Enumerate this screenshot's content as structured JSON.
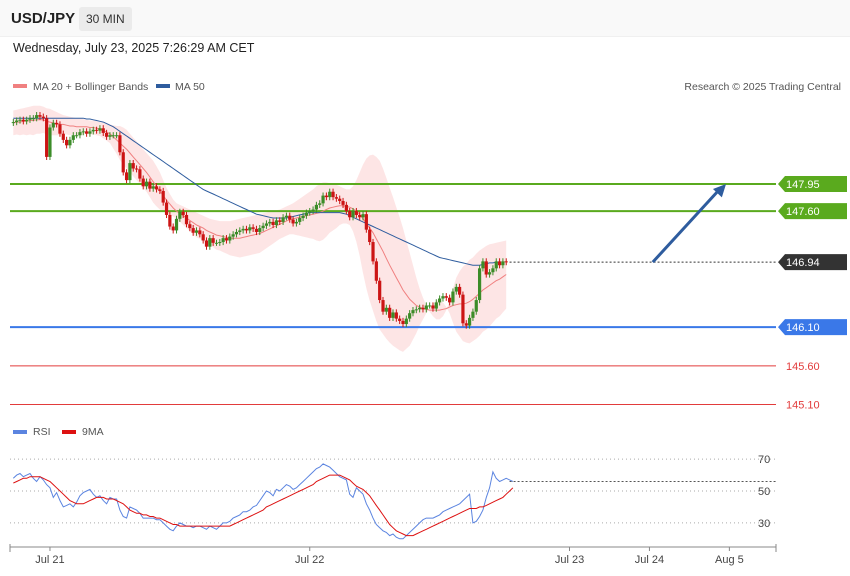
{
  "header": {
    "symbol": "USD/JPY",
    "interval": "30 MIN",
    "timestamp": "Wednesday, July 23, 2025 7:26:29 AM CET"
  },
  "legend": {
    "ma20_label": "MA 20 + Bollinger Bands",
    "ma50_label": "MA 50",
    "credit": "Research © 2025 Trading Central",
    "rsi_label": "RSI",
    "rsi_ma_label": "9MA"
  },
  "colors": {
    "ma20": "#f08080",
    "ma50": "#2e5c9e",
    "bollinger": "#fde0e0",
    "resistance": "#5aaa1e",
    "support": "#3a78e8",
    "support_minor": "#e23b3b",
    "up": "#3c8c28",
    "down": "#cc1414",
    "rsi": "#5b84e0",
    "rsi_ma": "#dd1111",
    "arrow": "#2e5c9e"
  },
  "chart_data": [
    {
      "type": "candlestick",
      "title": "USD/JPY",
      "y_range": [
        144.9,
        149.1
      ],
      "x_range": [
        0,
        230
      ],
      "x_tick_labels": [
        {
          "label": "Jul 21",
          "x": 12
        },
        {
          "label": "Jul 22",
          "x": 90
        },
        {
          "label": "Jul 23",
          "x": 168
        },
        {
          "label": "Jul 24",
          "x": 192
        },
        {
          "label": "Aug 5",
          "x": 216
        }
      ],
      "current_price": {
        "value": 146.94,
        "label": "146.94"
      },
      "levels": [
        {
          "value": 147.95,
          "label": "147.95",
          "kind": "resistance"
        },
        {
          "value": 147.6,
          "label": "147.60",
          "kind": "resistance"
        },
        {
          "value": 146.1,
          "label": "146.10",
          "kind": "support"
        },
        {
          "value": 145.6,
          "label": "145.60",
          "kind": "support_minor"
        },
        {
          "value": 145.1,
          "label": "145.10",
          "kind": "support_minor"
        }
      ],
      "target_arrow": {
        "from": {
          "x": 193,
          "y": 146.94
        },
        "to": {
          "x": 215,
          "y": 147.95
        }
      },
      "close": [
        148.75,
        148.77,
        148.78,
        148.76,
        148.78,
        148.8,
        148.8,
        148.84,
        148.82,
        148.8,
        148.3,
        148.68,
        148.74,
        148.72,
        148.6,
        148.52,
        148.45,
        148.52,
        148.58,
        148.58,
        148.62,
        148.63,
        148.6,
        148.63,
        148.65,
        148.64,
        148.67,
        148.61,
        148.56,
        148.58,
        148.58,
        148.58,
        148.36,
        148.1,
        148.0,
        148.22,
        148.15,
        148.14,
        148.02,
        147.92,
        147.98,
        147.89,
        147.92,
        147.88,
        147.86,
        147.71,
        147.55,
        147.4,
        147.35,
        147.5,
        147.59,
        147.55,
        147.43,
        147.38,
        147.32,
        147.35,
        147.3,
        147.22,
        147.14,
        147.25,
        147.19,
        147.19,
        147.2,
        147.25,
        147.22,
        147.27,
        147.3,
        147.33,
        147.35,
        147.37,
        147.35,
        147.39,
        147.37,
        147.33,
        147.38,
        147.41,
        147.44,
        147.46,
        147.42,
        147.48,
        147.46,
        147.52,
        147.54,
        147.49,
        147.44,
        147.46,
        147.51,
        147.54,
        147.58,
        147.6,
        147.62,
        147.68,
        147.7,
        147.8,
        147.78,
        147.85,
        147.78,
        147.76,
        147.73,
        147.68,
        147.6,
        147.52,
        147.6,
        147.55,
        147.52,
        147.56,
        147.36,
        147.2,
        146.95,
        146.7,
        146.45,
        146.3,
        146.35,
        146.22,
        146.29,
        146.21,
        146.18,
        146.14,
        146.21,
        146.28,
        146.32,
        146.33,
        146.35,
        146.33,
        146.38,
        146.38,
        146.34,
        146.42,
        146.47,
        146.5,
        146.48,
        146.42,
        146.56,
        146.62,
        146.52,
        146.15,
        146.12,
        146.22,
        146.3,
        146.45,
        146.86,
        146.95,
        146.78,
        146.81,
        146.86,
        146.95,
        146.9,
        146.95,
        146.94
      ],
      "bb_upper": [
        148.9,
        148.91,
        148.92,
        148.93,
        148.94,
        148.95,
        148.96,
        148.96,
        148.96,
        148.95,
        148.93,
        148.92,
        148.9,
        148.88,
        148.86,
        148.84,
        148.83,
        148.82,
        148.81,
        148.8,
        148.8,
        148.79,
        148.78,
        148.77,
        148.77,
        148.76,
        148.75,
        148.74,
        148.73,
        148.72,
        148.71,
        148.7,
        148.7,
        148.68,
        148.65,
        148.6,
        148.55,
        148.5,
        148.45,
        148.4,
        148.35,
        148.3,
        148.25,
        148.18,
        148.1,
        148.0,
        147.9,
        147.82,
        147.75,
        147.7,
        147.68,
        147.66,
        147.64,
        147.62,
        147.6,
        147.58,
        147.56,
        147.54,
        147.52,
        147.5,
        147.49,
        147.48,
        147.47,
        147.47,
        147.47,
        147.47,
        147.48,
        147.49,
        147.5,
        147.51,
        147.52,
        147.53,
        147.54,
        147.55,
        147.56,
        147.57,
        147.58,
        147.59,
        147.6,
        147.61,
        147.62,
        147.64,
        147.66,
        147.68,
        147.7,
        147.73,
        147.76,
        147.79,
        147.82,
        147.85,
        147.88,
        147.92,
        147.95,
        147.97,
        147.97,
        147.96,
        147.95,
        147.94,
        147.92,
        147.9,
        147.88,
        147.88,
        147.92,
        148.0,
        148.1,
        148.2,
        148.28,
        148.32,
        148.33,
        148.3,
        148.25,
        148.15,
        148.03,
        147.9,
        147.78,
        147.65,
        147.52,
        147.38,
        147.22,
        147.06,
        146.9,
        146.74,
        146.6,
        146.48,
        146.38,
        146.3,
        146.24,
        146.2,
        146.2,
        146.24,
        146.32,
        146.44,
        146.6,
        146.74,
        146.82,
        146.88,
        146.92,
        146.97,
        147.0,
        147.05,
        147.09,
        147.12,
        147.15,
        147.17,
        147.18,
        147.19,
        147.2,
        147.21,
        147.22
      ],
      "ma20": [
        148.74,
        148.75,
        148.75,
        148.76,
        148.76,
        148.77,
        148.77,
        148.78,
        148.78,
        148.78,
        148.76,
        148.75,
        148.74,
        148.73,
        148.72,
        148.72,
        148.71,
        148.7,
        148.7,
        148.69,
        148.69,
        148.69,
        148.69,
        148.68,
        148.68,
        148.67,
        148.66,
        148.64,
        148.62,
        148.6,
        148.56,
        148.52,
        148.48,
        148.44,
        148.4,
        148.35,
        148.3,
        148.25,
        148.2,
        148.15,
        148.1,
        148.04,
        147.98,
        147.92,
        147.86,
        147.8,
        147.74,
        147.69,
        147.64,
        147.6,
        147.57,
        147.54,
        147.51,
        147.48,
        147.45,
        147.42,
        147.4,
        147.38,
        147.35,
        147.33,
        147.31,
        147.29,
        147.28,
        147.27,
        147.26,
        147.25,
        147.25,
        147.25,
        147.25,
        147.26,
        147.27,
        147.28,
        147.29,
        147.3,
        147.31,
        147.33,
        147.35,
        147.37,
        147.39,
        147.41,
        147.43,
        147.45,
        147.47,
        147.49,
        147.5,
        147.51,
        147.52,
        147.53,
        147.54,
        147.55,
        147.56,
        147.57,
        147.58,
        147.6,
        147.62,
        147.64,
        147.65,
        147.66,
        147.67,
        147.67,
        147.66,
        147.65,
        147.63,
        147.6,
        147.56,
        147.5,
        147.44,
        147.38,
        147.32,
        147.24,
        147.16,
        147.08,
        146.99,
        146.9,
        146.82,
        146.74,
        146.66,
        146.58,
        146.52,
        146.46,
        146.42,
        146.38,
        146.36,
        146.34,
        146.33,
        146.32,
        146.32,
        146.32,
        146.32,
        146.33,
        146.34,
        146.36,
        146.38,
        146.39,
        146.4,
        146.4,
        146.41,
        146.43,
        146.46,
        146.5,
        146.54,
        146.58,
        146.61,
        146.64,
        146.67,
        146.7,
        146.72,
        146.75,
        146.78
      ],
      "ma50": [
        148.8,
        148.8,
        148.8,
        148.8,
        148.8,
        148.8,
        148.8,
        148.8,
        148.8,
        148.8,
        148.8,
        148.8,
        148.8,
        148.8,
        148.8,
        148.8,
        148.8,
        148.8,
        148.8,
        148.8,
        148.8,
        148.8,
        148.79,
        148.79,
        148.78,
        148.77,
        148.76,
        148.75,
        148.73,
        148.71,
        148.69,
        148.66,
        148.63,
        148.6,
        148.57,
        148.54,
        148.51,
        148.48,
        148.45,
        148.42,
        148.39,
        148.36,
        148.33,
        148.3,
        148.27,
        148.24,
        148.21,
        148.18,
        148.15,
        148.12,
        148.09,
        148.06,
        148.03,
        148.0,
        147.97,
        147.94,
        147.91,
        147.88,
        147.86,
        147.84,
        147.82,
        147.8,
        147.78,
        147.76,
        147.74,
        147.72,
        147.7,
        147.68,
        147.66,
        147.64,
        147.62,
        147.6,
        147.58,
        147.56,
        147.55,
        147.54,
        147.53,
        147.52,
        147.51,
        147.51,
        147.51,
        147.51,
        147.51,
        147.52,
        147.53,
        147.54,
        147.55,
        147.56,
        147.57,
        147.58,
        147.58,
        147.58,
        147.58,
        147.58,
        147.58,
        147.58,
        147.58,
        147.58,
        147.58,
        147.57,
        147.56,
        147.54,
        147.52,
        147.5,
        147.48,
        147.46,
        147.44,
        147.42,
        147.4,
        147.38,
        147.36,
        147.34,
        147.32,
        147.3,
        147.28,
        147.26,
        147.24,
        147.22,
        147.2,
        147.18,
        147.16,
        147.14,
        147.12,
        147.1,
        147.08,
        147.06,
        147.04,
        147.02,
        147.0,
        146.99,
        146.98,
        146.97,
        146.96,
        146.95,
        146.94,
        146.93,
        146.92,
        146.91,
        146.9,
        146.9,
        146.9,
        146.91,
        146.92,
        146.93,
        146.93,
        146.94,
        146.94
      ]
    },
    {
      "type": "line",
      "title": "RSI",
      "y_range": [
        18,
        77
      ],
      "y_ticks": [
        {
          "value": 70,
          "label": "70"
        },
        {
          "value": 50,
          "label": "50"
        },
        {
          "value": 30,
          "label": "30"
        }
      ],
      "series": [
        {
          "name": "RSI",
          "values": [
            58,
            60,
            61,
            59,
            60,
            61,
            58,
            56,
            59,
            57,
            54,
            52,
            46,
            49,
            44,
            40,
            41,
            42,
            40,
            43,
            47,
            49,
            50,
            51,
            48,
            46,
            47,
            44,
            42,
            46,
            45,
            45,
            38,
            34,
            33,
            40,
            39,
            38,
            36,
            33,
            33,
            33,
            33,
            32,
            32,
            30,
            28,
            26,
            25,
            28,
            30,
            29,
            28,
            28,
            27,
            28,
            28,
            27,
            26,
            28,
            27,
            26,
            28,
            30,
            30,
            31,
            33,
            34,
            35,
            37,
            37,
            38,
            40,
            41,
            44,
            47,
            50,
            49,
            47,
            51,
            50,
            52,
            54,
            53,
            51,
            52,
            54,
            56,
            58,
            60,
            62,
            64,
            65,
            67,
            66,
            65,
            63,
            61,
            59,
            58,
            57,
            48,
            46,
            52,
            50,
            48,
            42,
            38,
            33,
            29,
            27,
            25,
            24,
            22,
            23,
            21,
            20,
            20,
            22,
            24,
            26,
            28,
            30,
            32,
            33,
            33,
            33,
            34,
            35,
            37,
            38,
            39,
            40,
            41,
            42,
            44,
            46,
            48,
            30,
            31,
            34,
            38,
            46,
            52,
            62,
            58,
            56,
            57,
            58,
            57,
            56
          ]
        },
        {
          "name": "9MA",
          "values": [
            55,
            56,
            57,
            58,
            58,
            59,
            59,
            59,
            59,
            58,
            57,
            56,
            54,
            52,
            50,
            48,
            46,
            44,
            43,
            42,
            42,
            42,
            43,
            44,
            45,
            46,
            46,
            46,
            45,
            45,
            45,
            44,
            43,
            42,
            40,
            38,
            37,
            36,
            36,
            35,
            35,
            34,
            34,
            33,
            33,
            32,
            31,
            30,
            29,
            29,
            28,
            28,
            28,
            28,
            28,
            28,
            28,
            28,
            28,
            28,
            28,
            28,
            28,
            28,
            28,
            28,
            29,
            30,
            31,
            32,
            33,
            34,
            35,
            36,
            37,
            38,
            40,
            41,
            42,
            43,
            44,
            45,
            46,
            47,
            48,
            49,
            50,
            51,
            52,
            53,
            54,
            56,
            57,
            58,
            59,
            60,
            60,
            60,
            60,
            59,
            58,
            57,
            55,
            53,
            52,
            51,
            49,
            47,
            44,
            41,
            38,
            35,
            32,
            29,
            27,
            25,
            24,
            23,
            22,
            22,
            22,
            23,
            24,
            25,
            26,
            27,
            28,
            29,
            30,
            31,
            32,
            33,
            34,
            35,
            36,
            37,
            38,
            39,
            39,
            39,
            40,
            40,
            41,
            42,
            43,
            44,
            45,
            46,
            48,
            50,
            52
          ]
        }
      ]
    }
  ]
}
